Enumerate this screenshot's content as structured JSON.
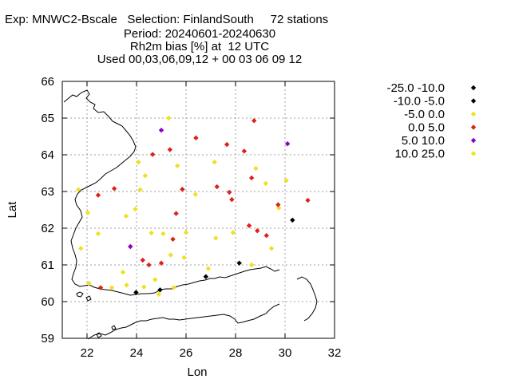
{
  "header": {
    "line1": "Exp: MNWC2-Bscale   Selection: FinlandSouth     72 stations",
    "line2": "Period: 20240601-20240630",
    "line3": "Rh2m bias [%] at  12 UTC",
    "line4": "Used 00,03,06,09,12 + 00 03 06 09 12"
  },
  "chart_data": {
    "type": "scatter",
    "xlabel": "Lon",
    "ylabel": "Lat",
    "xlim": [
      21,
      32
    ],
    "ylim": [
      59,
      66
    ],
    "xticks": [
      22,
      24,
      26,
      28,
      30,
      32
    ],
    "yticks": [
      59,
      60,
      61,
      62,
      63,
      64,
      65,
      66
    ],
    "grid": true,
    "legend_position": "right",
    "legend": [
      {
        "label": "-25.0 -10.0",
        "color": "#000000"
      },
      {
        "label": "-10.0 -5.0",
        "color": "#000000"
      },
      {
        "label": "-5.0 0.0",
        "color": "#f0e020"
      },
      {
        "label": "0.0 5.0",
        "color": "#e0201a"
      },
      {
        "label": "5.0 10.0",
        "color": "#8a00c8"
      },
      {
        "label": "10.0 25.0",
        "color": "#f0e020"
      }
    ],
    "series": [
      {
        "class": "-10.0 -5.0",
        "color": "#000000",
        "points": [
          [
            30.3,
            62.22
          ],
          [
            28.15,
            61.05
          ],
          [
            26.8,
            60.68
          ],
          [
            24.95,
            60.32
          ],
          [
            23.98,
            60.25
          ]
        ]
      },
      {
        "class": "-5.0 0.0",
        "color": "#f0e020",
        "points": [
          [
            25.3,
            65.0
          ],
          [
            24.08,
            63.8
          ],
          [
            27.15,
            63.8
          ],
          [
            28.82,
            63.63
          ],
          [
            25.65,
            63.7
          ],
          [
            24.35,
            63.43
          ],
          [
            29.22,
            63.22
          ],
          [
            30.05,
            63.3
          ],
          [
            21.65,
            63.05
          ],
          [
            24.15,
            63.05
          ],
          [
            26.38,
            62.92
          ],
          [
            23.95,
            62.52
          ],
          [
            22.03,
            62.42
          ],
          [
            23.58,
            62.33
          ],
          [
            29.75,
            62.55
          ],
          [
            22.45,
            61.85
          ],
          [
            25.08,
            61.85
          ],
          [
            24.6,
            61.87
          ],
          [
            26.0,
            61.88
          ],
          [
            27.2,
            61.73
          ],
          [
            27.9,
            61.88
          ],
          [
            21.75,
            61.45
          ],
          [
            29.45,
            61.45
          ],
          [
            23.75,
            61.5
          ],
          [
            25.38,
            61.27
          ],
          [
            25.92,
            61.2
          ],
          [
            28.65,
            61.0
          ],
          [
            26.9,
            60.9
          ],
          [
            23.45,
            60.8
          ],
          [
            24.75,
            60.6
          ],
          [
            22.08,
            60.5
          ],
          [
            24.3,
            60.4
          ],
          [
            23.0,
            60.38
          ],
          [
            25.5,
            60.38
          ],
          [
            23.6,
            60.45
          ],
          [
            24.9,
            60.2
          ]
        ]
      },
      {
        "class": "0.0 5.0",
        "color": "#e0201a",
        "points": [
          [
            28.75,
            64.93
          ],
          [
            26.4,
            64.46
          ],
          [
            27.65,
            64.28
          ],
          [
            25.35,
            64.14
          ],
          [
            28.35,
            64.1
          ],
          [
            24.65,
            64.01
          ],
          [
            28.65,
            63.37
          ],
          [
            23.1,
            63.08
          ],
          [
            25.85,
            63.06
          ],
          [
            27.25,
            63.13
          ],
          [
            27.75,
            62.98
          ],
          [
            22.45,
            62.9
          ],
          [
            27.85,
            62.78
          ],
          [
            30.92,
            62.76
          ],
          [
            29.72,
            62.64
          ],
          [
            25.6,
            62.4
          ],
          [
            28.55,
            62.07
          ],
          [
            28.88,
            61.93
          ],
          [
            29.25,
            61.8
          ],
          [
            25.47,
            61.7
          ],
          [
            24.25,
            61.13
          ],
          [
            24.5,
            61.0
          ],
          [
            25.0,
            61.05
          ],
          [
            22.55,
            60.38
          ]
        ]
      },
      {
        "class": "5.0 10.0",
        "color": "#8a00c8",
        "points": [
          [
            25.0,
            64.67
          ],
          [
            30.1,
            64.3
          ],
          [
            23.75,
            61.5
          ]
        ]
      }
    ]
  }
}
